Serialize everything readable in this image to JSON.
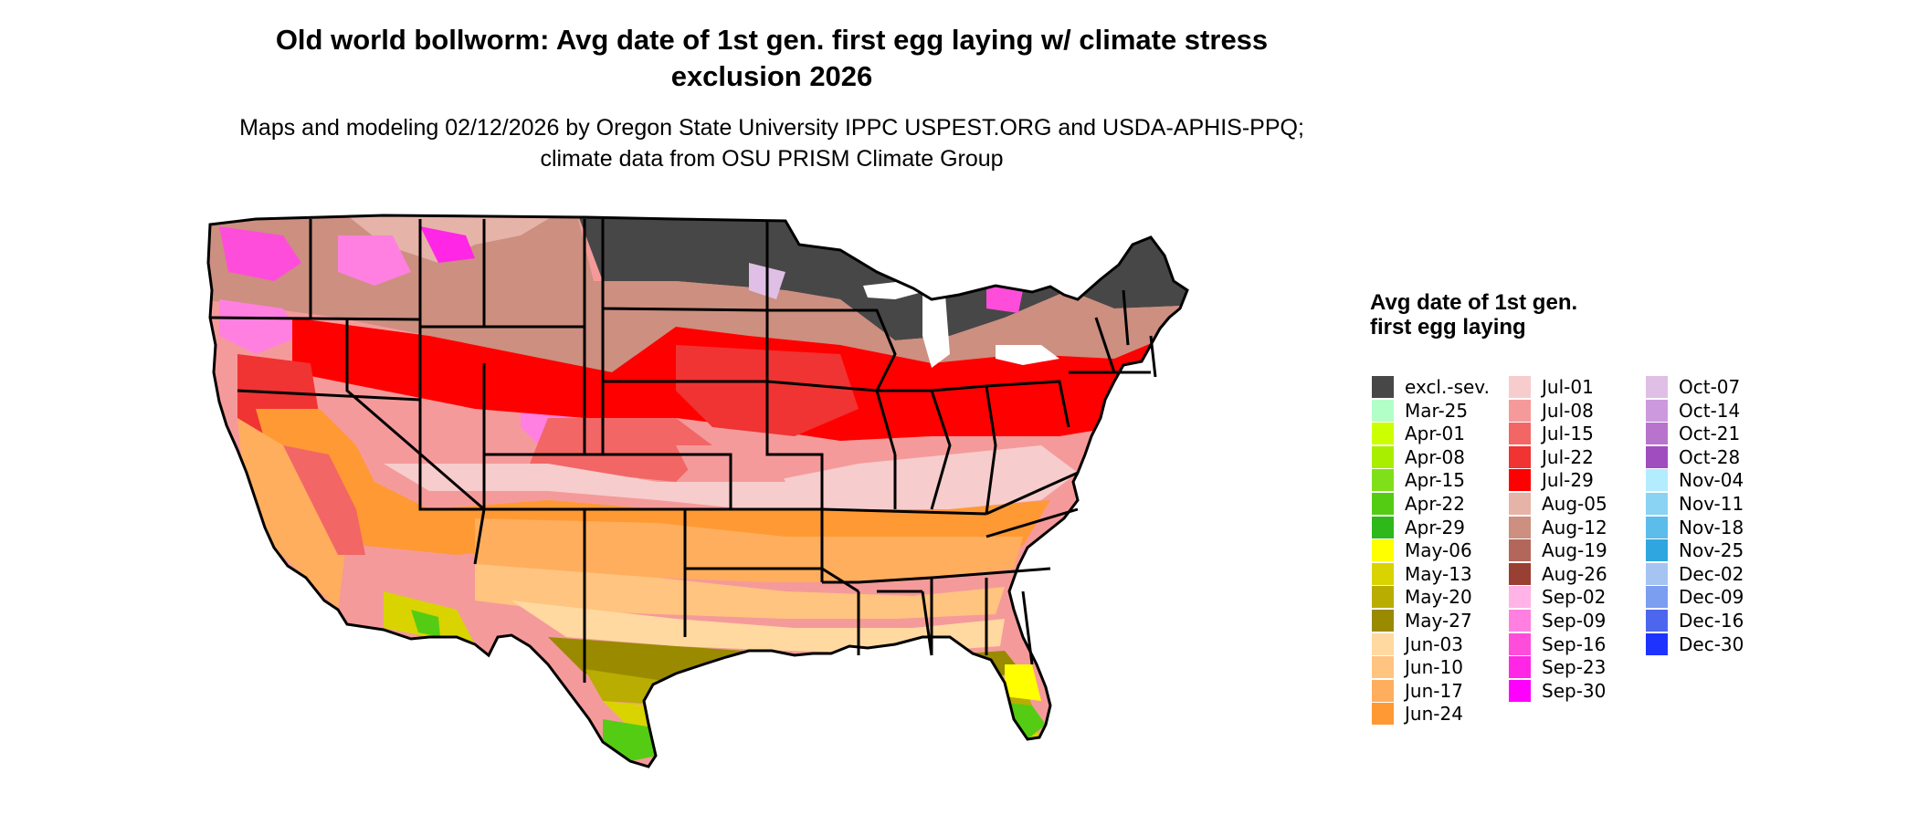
{
  "title": "Old world bollworm: Avg date of 1st gen. first egg laying w/ climate stress exclusion 2026",
  "subtitle": "Maps and modeling 02/12/2026 by Oregon State University IPPC USPEST.ORG and USDA-APHIS-PPQ; climate data from OSU PRISM Climate Group",
  "legend": {
    "title": "Avg date of 1st gen. first egg laying",
    "items": [
      {
        "label": "excl.-sev.",
        "color": "#474747"
      },
      {
        "label": "Mar-25",
        "color": "#b3ffc8"
      },
      {
        "label": "Apr-01",
        "color": "#ccff00"
      },
      {
        "label": "Apr-08",
        "color": "#a9ee00"
      },
      {
        "label": "Apr-15",
        "color": "#7fe01a"
      },
      {
        "label": "Apr-22",
        "color": "#55cc14"
      },
      {
        "label": "Apr-29",
        "color": "#2fb81a"
      },
      {
        "label": "May-06",
        "color": "#ffff00"
      },
      {
        "label": "May-13",
        "color": "#d9d400"
      },
      {
        "label": "May-20",
        "color": "#b8ad00"
      },
      {
        "label": "May-27",
        "color": "#998a00"
      },
      {
        "label": "Jun-03",
        "color": "#ffd9a0"
      },
      {
        "label": "Jun-10",
        "color": "#ffc47f"
      },
      {
        "label": "Jun-17",
        "color": "#ffae5e"
      },
      {
        "label": "Jun-24",
        "color": "#ff9933"
      },
      {
        "label": "Jul-01",
        "color": "#f7cccc"
      },
      {
        "label": "Jul-08",
        "color": "#f59a9a"
      },
      {
        "label": "Jul-15",
        "color": "#f26666"
      },
      {
        "label": "Jul-22",
        "color": "#f03333"
      },
      {
        "label": "Jul-29",
        "color": "#ff0000"
      },
      {
        "label": "Aug-05",
        "color": "#e6b3a8"
      },
      {
        "label": "Aug-12",
        "color": "#cc8f80"
      },
      {
        "label": "Aug-19",
        "color": "#b3675a"
      },
      {
        "label": "Aug-26",
        "color": "#993f33"
      },
      {
        "label": "Sep-02",
        "color": "#ffb3e6"
      },
      {
        "label": "Sep-09",
        "color": "#ff80e0"
      },
      {
        "label": "Sep-16",
        "color": "#ff4ddb"
      },
      {
        "label": "Sep-23",
        "color": "#ff26e6"
      },
      {
        "label": "Sep-30",
        "color": "#ff00ff"
      },
      {
        "label": "Oct-07",
        "color": "#e0bfe6"
      },
      {
        "label": "Oct-14",
        "color": "#cc99dd"
      },
      {
        "label": "Oct-21",
        "color": "#b873cc"
      },
      {
        "label": "Oct-28",
        "color": "#9f4dbf"
      },
      {
        "label": "Nov-04",
        "color": "#b3ecff"
      },
      {
        "label": "Nov-11",
        "color": "#8ad3f2"
      },
      {
        "label": "Nov-18",
        "color": "#5cbcea"
      },
      {
        "label": "Nov-25",
        "color": "#2fa6e0"
      },
      {
        "label": "Dec-02",
        "color": "#a6c4f2"
      },
      {
        "label": "Dec-09",
        "color": "#7b9ef0"
      },
      {
        "label": "Dec-16",
        "color": "#4d66ee"
      },
      {
        "label": "Dec-30",
        "color": "#1f33ff"
      }
    ]
  }
}
